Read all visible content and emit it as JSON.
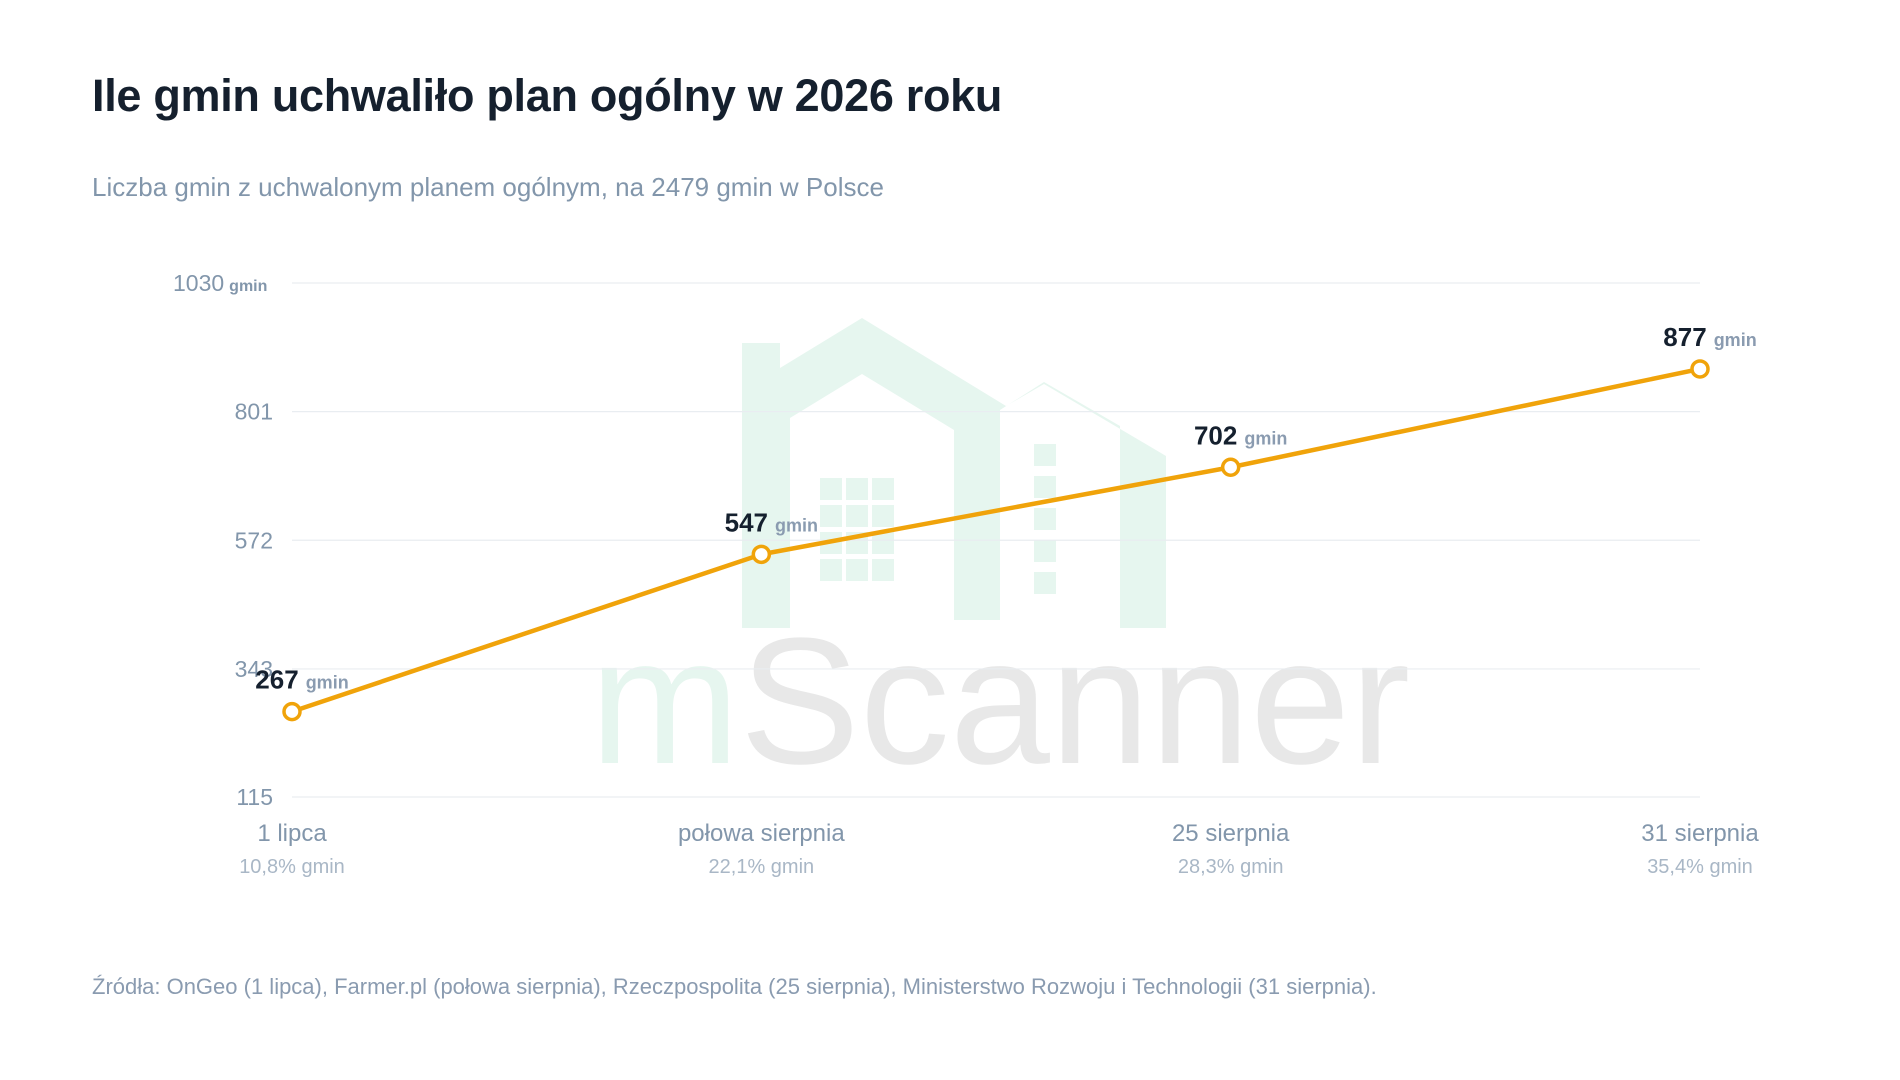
{
  "header": {
    "title": "Ile gmin uchwaliło plan ogólny w 2026 roku",
    "subtitle": "Liczba gmin z uchwalonym planem ogólnym, na 2479 gmin w Polsce"
  },
  "watermark": {
    "text_m": "m",
    "text_rest": "Scanner",
    "color_green": "#e6f6ef",
    "color_gray": "#e8e8e8"
  },
  "colors": {
    "line": "#f0a30a",
    "grid": "#e9edf1",
    "point_fill": "#ffffff"
  },
  "chart_data": {
    "type": "line",
    "title": "Ile gmin uchwaliło plan ogólny w 2026 roku",
    "subtitle": "Liczba gmin z uchwalonym planem ogólnym, na 2479 gmin w Polsce",
    "categories": [
      "1 lipca",
      "połowa sierpnia",
      "25 sierpnia",
      "31 sierpnia"
    ],
    "category_sublabels": [
      "10,8% gmin",
      "22,1% gmin",
      "28,3% gmin",
      "35,4% gmin"
    ],
    "values": [
      267,
      547,
      702,
      877
    ],
    "value_unit": "gmin",
    "yticks": [
      115,
      343,
      572,
      801,
      1030
    ],
    "ytick_top_unit": "gmin",
    "ylim": [
      115,
      1030
    ],
    "grid": true,
    "legend": "none"
  },
  "footer": {
    "source": "Źródła: OnGeo (1 lipca), Farmer.pl (połowa sierpnia), Rzeczpospolita (25 sierpnia), Ministerstwo Rozwoju i Technologii (31 sierpnia)."
  }
}
